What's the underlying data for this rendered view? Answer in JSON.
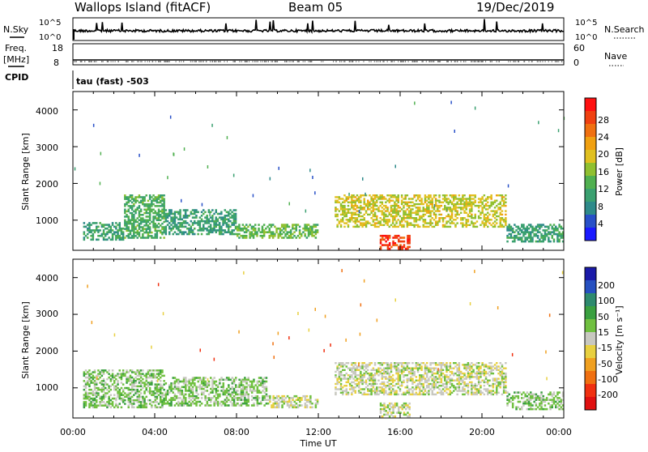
{
  "header": {
    "station": "Wallops Island (fitACF)",
    "beam": "Beam 05",
    "date": "19/Dec/2019"
  },
  "noise_panel": {
    "left_label": "N.Sky",
    "right_label": "N.Search",
    "left_ticks": [
      "10^5",
      "10^0"
    ],
    "right_ticks": [
      "10^5",
      "10^0"
    ]
  },
  "freq_panel": {
    "left_label": "Freq.",
    "left_unit": "[MHz]",
    "left_ticks": [
      "18",
      "8"
    ],
    "right_label": "Nave",
    "right_ticks": [
      "60",
      "0"
    ]
  },
  "cpid": {
    "label": "CPID",
    "value": "tau (fast) -503"
  },
  "power_panel": {
    "ylabel": "Slant Range [km]",
    "yticks": [
      "4000",
      "3000",
      "2000",
      "1000"
    ],
    "colorbar_label": "Power [dB]",
    "colorbar_ticks": [
      "28",
      "24",
      "20",
      "16",
      "12",
      "8",
      "4"
    ],
    "colors": [
      "#1a1aff",
      "#2850c8",
      "#2e8a8a",
      "#3aa070",
      "#50b050",
      "#90c030",
      "#e0c020",
      "#f0a010",
      "#f07010",
      "#f04010",
      "#ff1010"
    ]
  },
  "velocity_panel": {
    "ylabel": "Slant Range [km]",
    "yticks": [
      "4000",
      "3000",
      "2000",
      "1000"
    ],
    "colorbar_label": "Velocity [m s⁻¹]",
    "colorbar_ticks": [
      "200",
      "100",
      "50",
      "15",
      "-15",
      "-50",
      "-100",
      "-200"
    ],
    "colors": [
      "#1a1aa8",
      "#2650c0",
      "#2e8a6e",
      "#3aa040",
      "#70c040",
      "#c8c8c0",
      "#e8d040",
      "#f0a020",
      "#f07010",
      "#f03010",
      "#e01010"
    ]
  },
  "x_axis": {
    "ticks": [
      "00:00",
      "04:00",
      "08:00",
      "12:00",
      "16:00",
      "20:00",
      "00:00"
    ],
    "label": "Time UT"
  },
  "chart_data": [
    {
      "type": "line",
      "panel": "noise",
      "series": [
        {
          "name": "N.Sky"
        },
        {
          "name": "N.Search"
        }
      ],
      "x_range_hours": [
        0,
        24
      ],
      "yscale": "log",
      "ylim": [
        1,
        100000
      ]
    },
    {
      "type": "scatter",
      "panel": "frequency / nave",
      "x_range_hours": [
        0,
        24
      ],
      "ylim_freq_mhz": [
        8,
        18
      ],
      "ylim_nave": [
        0,
        60
      ]
    },
    {
      "type": "heatmap",
      "panel": "power",
      "x_range_hours": [
        0,
        24
      ],
      "ylim_km": [
        180,
        4500
      ],
      "zlim_db": [
        0,
        32
      ],
      "regions": [
        {
          "t_start": 0.5,
          "t_end": 2.5,
          "r_min": 450,
          "r_max": 950,
          "value_db": 10
        },
        {
          "t_start": 2.5,
          "t_end": 4.5,
          "r_min": 500,
          "r_max": 1700,
          "value_db": 12
        },
        {
          "t_start": 4.5,
          "t_end": 8.0,
          "r_min": 600,
          "r_max": 1300,
          "value_db": 10
        },
        {
          "t_start": 8.0,
          "t_end": 12.0,
          "r_min": 500,
          "r_max": 900,
          "value_db": 14
        },
        {
          "t_start": 12.8,
          "t_end": 21.2,
          "r_min": 800,
          "r_max": 1700,
          "value_db": 18
        },
        {
          "t_start": 15.0,
          "t_end": 16.5,
          "r_min": 200,
          "r_max": 600,
          "value_db": 28
        },
        {
          "t_start": 21.2,
          "t_end": 24.0,
          "r_min": 400,
          "r_max": 900,
          "value_db": 10
        }
      ]
    },
    {
      "type": "heatmap",
      "panel": "velocity",
      "x_range_hours": [
        0,
        24
      ],
      "ylim_km": [
        180,
        4500
      ],
      "zlim_ms": [
        -250,
        250
      ],
      "regions": [
        {
          "t_start": 0.5,
          "t_end": 4.5,
          "r_min": 450,
          "r_max": 1500,
          "value_ms": 40
        },
        {
          "t_start": 4.5,
          "t_end": 9.5,
          "r_min": 500,
          "r_max": 1300,
          "value_ms": 40
        },
        {
          "t_start": 9.5,
          "t_end": 12.0,
          "r_min": 450,
          "r_max": 800,
          "value_ms": 0
        },
        {
          "t_start": 12.8,
          "t_end": 21.2,
          "r_min": 800,
          "r_max": 1700,
          "value_ms": 0
        },
        {
          "t_start": 15.0,
          "t_end": 16.5,
          "r_min": 200,
          "r_max": 600,
          "value_ms": 0
        },
        {
          "t_start": 21.2,
          "t_end": 24.0,
          "r_min": 400,
          "r_max": 900,
          "value_ms": 40
        }
      ]
    }
  ]
}
